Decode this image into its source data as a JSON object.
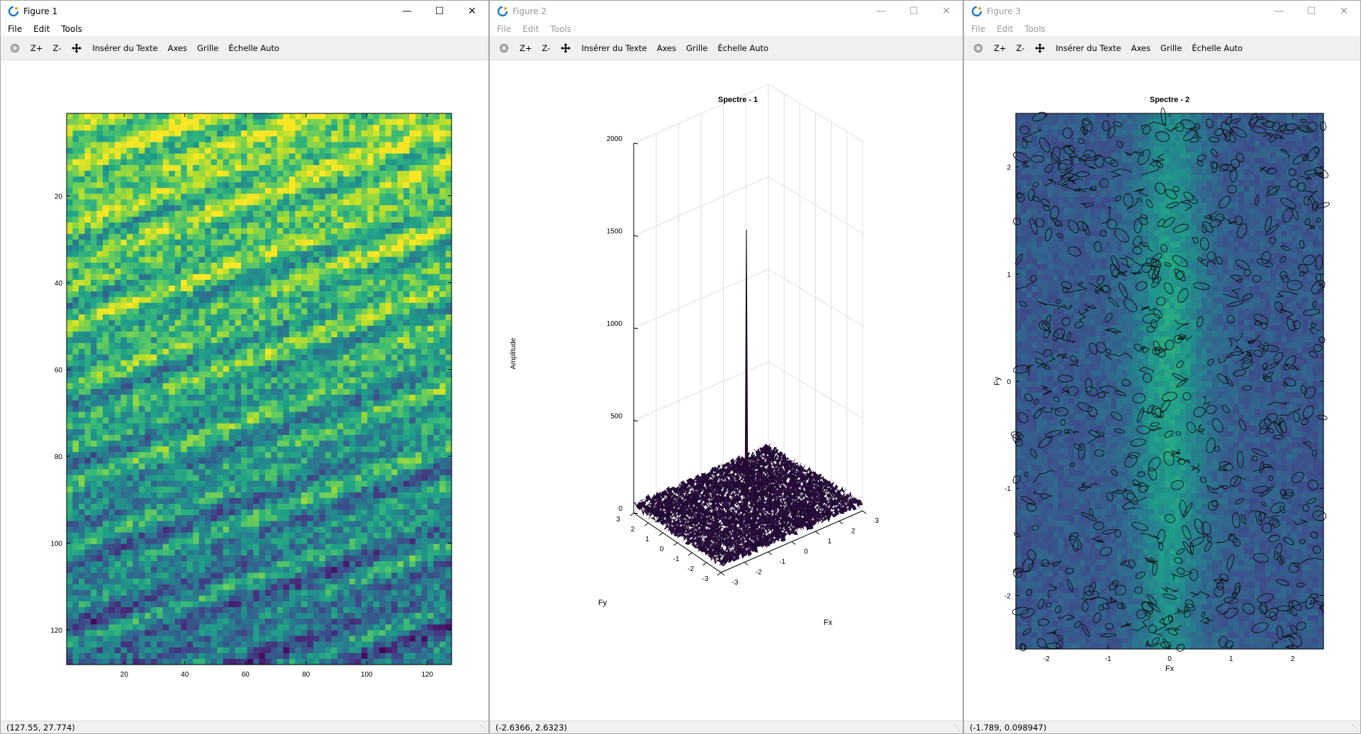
{
  "windows": [
    {
      "title": "Figure 1",
      "menu": [
        "File",
        "Edit",
        "Tools"
      ],
      "toolbar": [
        "Z+",
        "Z-",
        "Insérer du Texte",
        "Axes",
        "Grille",
        "Échelle Auto"
      ],
      "status": "(127.55, 27.774)"
    },
    {
      "title": "Figure 2",
      "menu": [
        "File",
        "Edit",
        "Tools"
      ],
      "toolbar": [
        "Z+",
        "Z-",
        "Insérer du Texte",
        "Axes",
        "Grille",
        "Échelle Auto"
      ],
      "status": "(-2.6366, 2.6323)"
    },
    {
      "title": "Figure 3",
      "menu": [
        "File",
        "Edit",
        "Tools"
      ],
      "toolbar": [
        "Z+",
        "Z-",
        "Insérer du Texte",
        "Axes",
        "Grille",
        "Échelle Auto"
      ],
      "status": "(-1.789, 0.098947)"
    }
  ],
  "colors": {
    "viridis_dark": "#440154",
    "viridis_mid": "#21918c",
    "viridis_light": "#fde725",
    "surface_dark": "#2a0e3a"
  },
  "chart_data": [
    {
      "type": "heatmap",
      "title": "",
      "xlabel": "",
      "ylabel": "",
      "xlim": [
        1,
        128
      ],
      "ylim": [
        128,
        1
      ],
      "xticks": [
        20,
        40,
        60,
        80,
        100,
        120
      ],
      "yticks": [
        20,
        40,
        60,
        80,
        100,
        120
      ],
      "colormap": "viridis",
      "grid": false
    },
    {
      "type": "surface",
      "title": "Spectre - 1",
      "xlabel": "Fx",
      "ylabel": "Fy",
      "zlabel": "Amplitude",
      "xlim": [
        -3,
        3
      ],
      "ylim": [
        -3,
        3
      ],
      "zlim": [
        0,
        2000
      ],
      "xticks": [
        -3,
        -2,
        -1,
        0,
        1,
        2,
        3
      ],
      "yticks": [
        -3,
        -2,
        -1,
        0,
        1,
        2,
        3
      ],
      "zticks": [
        0,
        500,
        1000,
        1500,
        2000
      ],
      "peak": {
        "x": 0,
        "y": 0,
        "z": 1530
      },
      "grid": true
    },
    {
      "type": "contour",
      "title": "Spectre - 2",
      "xlabel": "Fx",
      "ylabel": "Fy",
      "xlim": [
        -2.5,
        2.5
      ],
      "ylim": [
        -2.5,
        2.5
      ],
      "xticks": [
        -2,
        -1,
        0,
        1,
        2
      ],
      "yticks": [
        -2,
        -1,
        0,
        1,
        2
      ],
      "colormap": "viridis",
      "grid": false
    }
  ]
}
